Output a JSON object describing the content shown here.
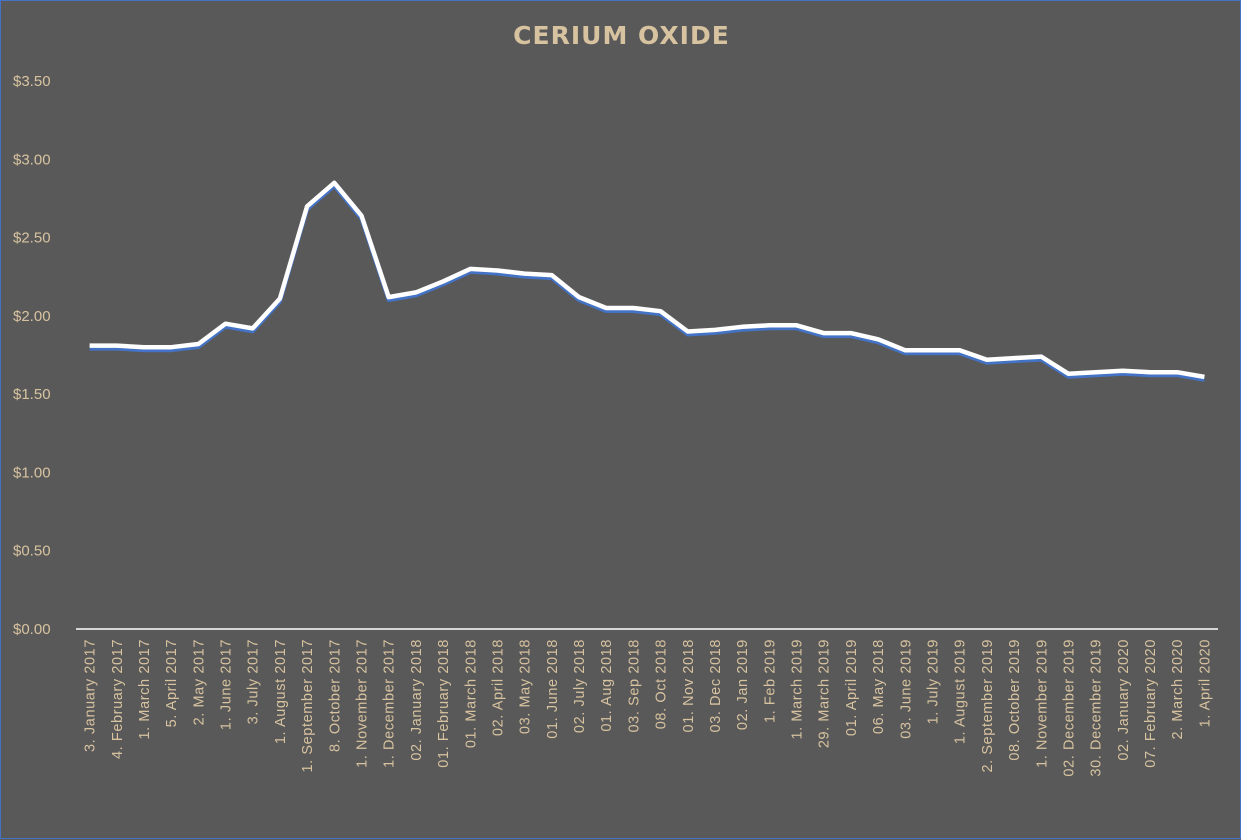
{
  "chart_data": {
    "type": "line",
    "title": "CERIUM OXIDE",
    "xlabel": "",
    "ylabel": "",
    "ylim": [
      0,
      3.5
    ],
    "yticks": [
      "$0.00",
      "$0.50",
      "$1.00",
      "$1.50",
      "$2.00",
      "$2.50",
      "$3.00",
      "$3.50"
    ],
    "ytick_values": [
      0,
      0.5,
      1.0,
      1.5,
      2.0,
      2.5,
      3.0,
      3.5
    ],
    "grid": false,
    "drop_lines": true,
    "categories": [
      "3. January 2017",
      "4. February 2017",
      "1. March 2017",
      "5. April 2017",
      "2. May 2017",
      "1. June 2017",
      "3. July 2017",
      "1. August 2017",
      "1. September 2017",
      "8. October 2017",
      "1. November 2017",
      "1. December 2017",
      "02. January 2018",
      "01. February 2018",
      "01. March 2018",
      "02. April 2018",
      "03. May 2018",
      "01. June 2018",
      "02. July 2018",
      "01. Aug 2018",
      "03. Sep 2018",
      "08. Oct 2018",
      "01. Nov 2018",
      "03. Dec 2018",
      "02. Jan 2019",
      "1. Feb 2019",
      "1. March 2019",
      "29. March 2019",
      "01. April 2019",
      "06. May 2018",
      "03. June 2019",
      "1. July 2019",
      "1. August 2019",
      "2. September 2019",
      "08. October 2019",
      "1. November 2019",
      "02. December 2019",
      "30. December 2019",
      "02. January 2020",
      "07. February 2020",
      "2. March 2020",
      "1. April 2020"
    ],
    "series": [
      {
        "values": [
          1.81,
          1.81,
          1.8,
          1.8,
          1.82,
          1.95,
          1.92,
          2.11,
          2.7,
          2.85,
          2.64,
          2.12,
          2.15,
          2.22,
          2.3,
          2.29,
          2.27,
          2.26,
          2.12,
          2.05,
          2.05,
          2.03,
          1.9,
          1.91,
          1.93,
          1.94,
          1.94,
          1.89,
          1.89,
          1.85,
          1.78,
          1.78,
          1.78,
          1.72,
          1.73,
          1.74,
          1.63,
          1.64,
          1.65,
          1.64,
          1.64,
          1.61
        ],
        "color": "#4472c4"
      }
    ],
    "colors": {
      "background": "#595959",
      "line": "#ffffff",
      "line_shadow": "#4472c4",
      "text": "#d8c3a0",
      "axis": "#ffffff"
    }
  }
}
